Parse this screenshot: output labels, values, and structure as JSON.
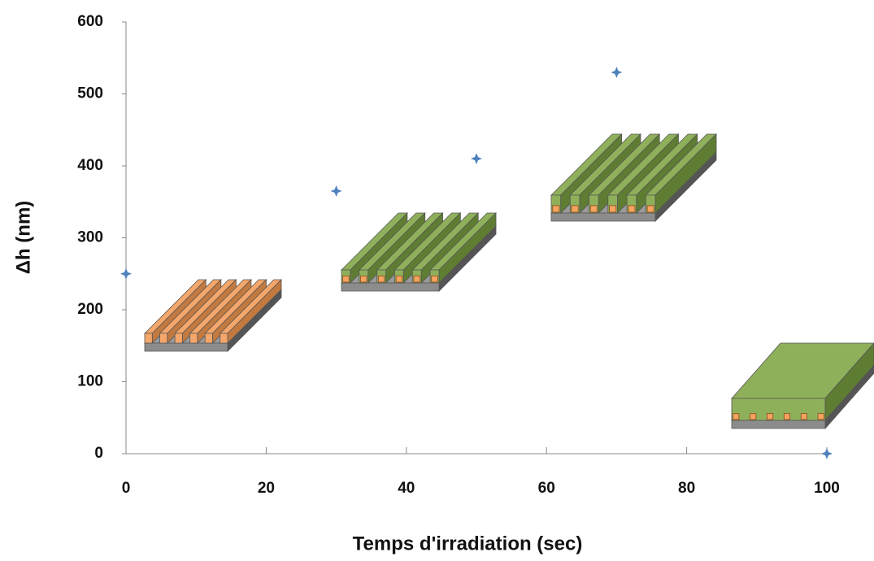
{
  "chart_data": {
    "type": "scatter",
    "x_label": "Temps d'irradiation (sec)",
    "y_label": "Δh (nm)",
    "x": [
      0,
      30,
      50,
      70,
      100
    ],
    "values": [
      250,
      365,
      410,
      530,
      0
    ],
    "color": "#4f81bd",
    "xlim": [
      0,
      100
    ],
    "xticks": [
      0,
      20,
      40,
      60,
      80,
      100
    ],
    "ylim": [
      0,
      600
    ],
    "yticks": [
      0,
      100,
      200,
      300,
      400,
      500,
      600
    ],
    "grid": false
  }
}
